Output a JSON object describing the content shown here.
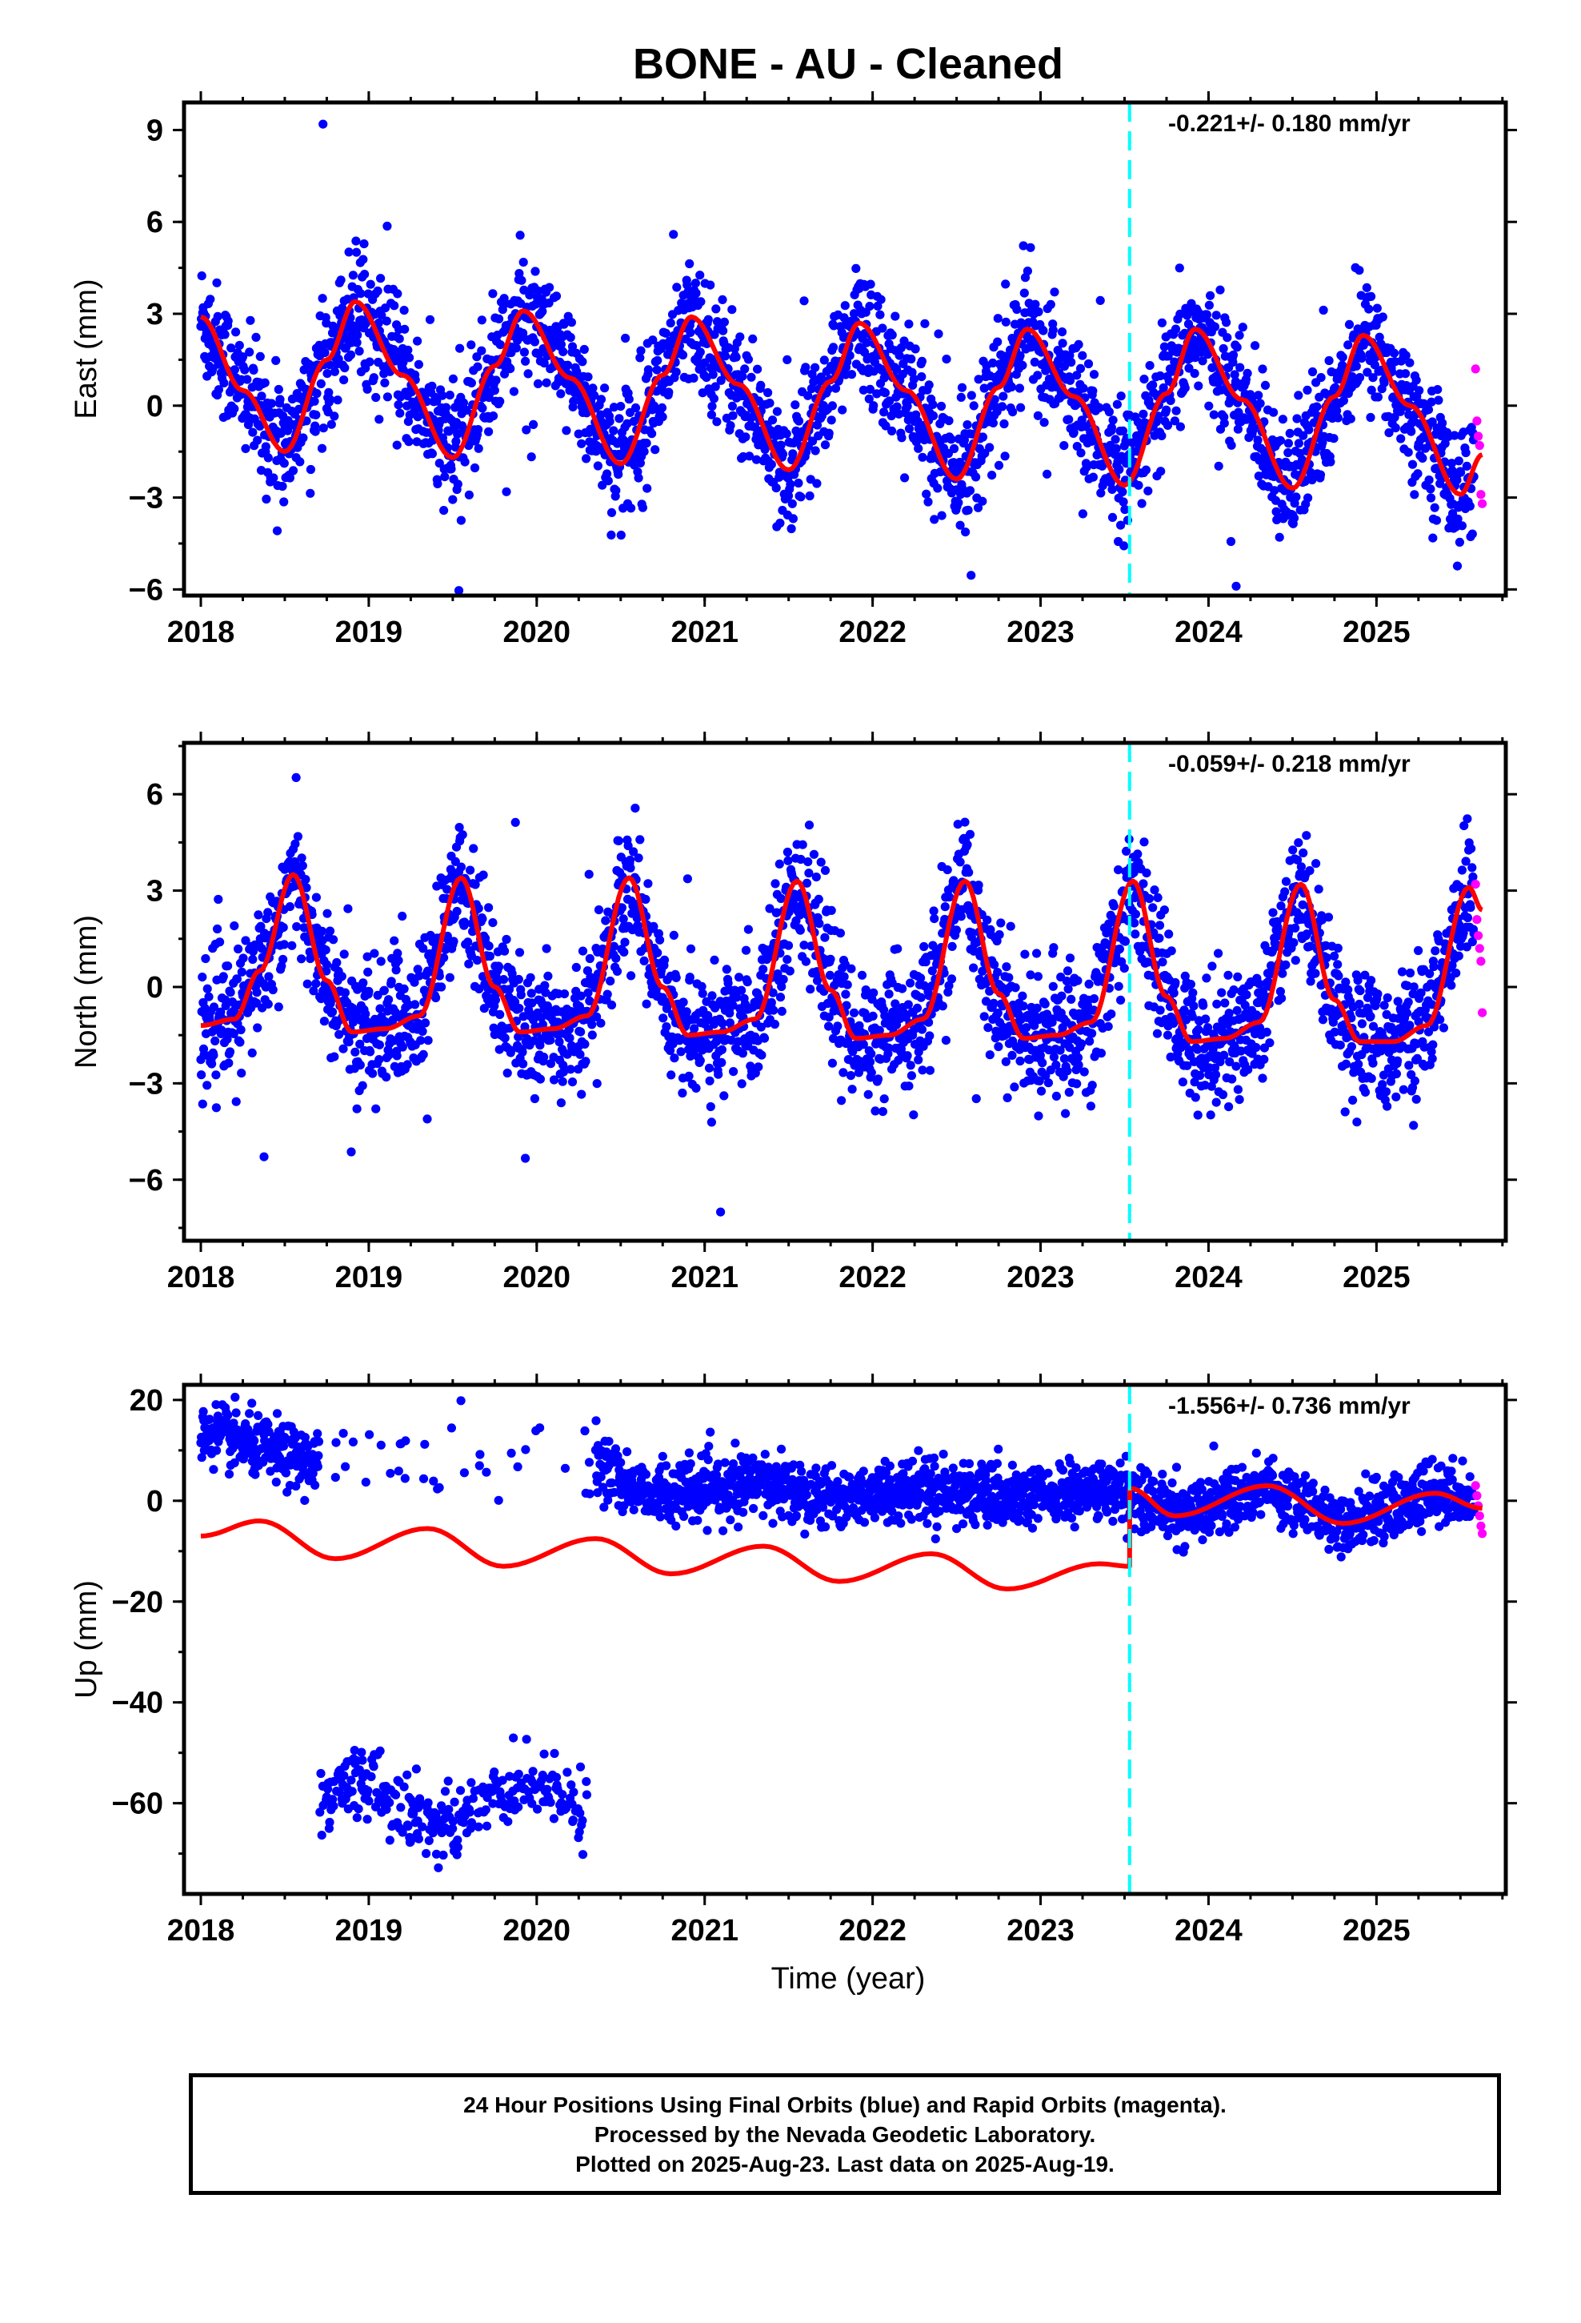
{
  "title": "BONE  - AU - Cleaned",
  "xlabel": "Time (year)",
  "footer": {
    "line1": "24 Hour Positions Using Final Orbits (blue) and Rapid Orbits (magenta).",
    "line2": "Processed by the Nevada Geodetic Laboratory.",
    "line3": "Plotted on 2025-Aug-23. Last data on 2025-Aug-19."
  },
  "colors": {
    "final_orbits": "#0000ff",
    "rapid_orbits": "#ff00ff",
    "model": "#ff0000",
    "equipment_change": "#00ffff"
  },
  "chart_data": [
    {
      "type": "scatter",
      "panel": "east",
      "ylabel": "East (mm)",
      "rate": "-0.221+/- 0.180 mm/yr",
      "xlim": [
        2017.9,
        2025.77
      ],
      "ylim": [
        -6.2,
        9.9
      ],
      "yticks": [
        -6,
        -3,
        0,
        3,
        6,
        9
      ],
      "xticks": [
        2018,
        2019,
        2020,
        2021,
        2022,
        2023,
        2024,
        2025
      ],
      "equipment_change": 2023.53,
      "series": [
        {
          "role": "final_orbits",
          "x_range": [
            2018.0,
            2025.58
          ],
          "approx_points": 2700,
          "scatter_sd_mm": 1.0
        },
        {
          "role": "rapid_orbits",
          "x_range": [
            2025.59,
            2025.63
          ],
          "y_values": [
            1.2,
            -0.5,
            -1.0,
            -1.3,
            -2.9,
            -3.2
          ]
        },
        {
          "role": "model",
          "x": [
            2018.0,
            2018.25,
            2018.5,
            2018.75,
            2018.92,
            2019.2,
            2019.5,
            2019.75,
            2019.92,
            2020.2,
            2020.5,
            2020.75,
            2020.92,
            2021.2,
            2021.5,
            2021.75,
            2021.92,
            2022.2,
            2022.5,
            2022.75,
            2022.92,
            2023.2,
            2023.5,
            2023.75,
            2023.92,
            2024.2,
            2024.5,
            2024.75,
            2024.92,
            2025.2,
            2025.5,
            2025.63
          ],
          "y": [
            2.9,
            0.5,
            -1.5,
            1.5,
            3.4,
            1.0,
            -1.7,
            1.3,
            3.1,
            0.9,
            -1.9,
            1.0,
            2.9,
            0.7,
            -2.1,
            0.8,
            2.7,
            0.5,
            -2.4,
            0.6,
            2.5,
            0.3,
            -2.6,
            0.4,
            2.5,
            0.2,
            -2.7,
            0.3,
            2.3,
            0.0,
            -2.9,
            -1.6
          ]
        }
      ]
    },
    {
      "type": "scatter",
      "panel": "north",
      "ylabel": "North (mm)",
      "rate": "-0.059+/- 0.218 mm/yr",
      "xlim": [
        2017.9,
        2025.77
      ],
      "ylim": [
        -7.9,
        7.6
      ],
      "yticks": [
        -6,
        -3,
        0,
        3,
        6
      ],
      "xticks": [
        2018,
        2019,
        2020,
        2021,
        2022,
        2023,
        2024,
        2025
      ],
      "equipment_change": 2023.53,
      "series": [
        {
          "role": "final_orbits",
          "x_range": [
            2018.0,
            2025.58
          ],
          "approx_points": 2700,
          "scatter_sd_mm": 1.0
        },
        {
          "role": "rapid_orbits",
          "x_range": [
            2025.59,
            2025.63
          ],
          "y_values": [
            3.2,
            2.1,
            1.6,
            1.2,
            0.8,
            -0.8
          ]
        },
        {
          "role": "model",
          "x": [
            2018.0,
            2018.2,
            2018.35,
            2018.55,
            2018.75,
            2018.9,
            2019.1,
            2019.3,
            2019.55,
            2019.75,
            2019.9,
            2020.1,
            2020.3,
            2020.55,
            2020.75,
            2020.9,
            2021.1,
            2021.3,
            2021.55,
            2021.75,
            2021.9,
            2022.1,
            2022.3,
            2022.55,
            2022.75,
            2022.9,
            2023.1,
            2023.3,
            2023.55,
            2023.75,
            2023.9,
            2024.1,
            2024.3,
            2024.55,
            2024.75,
            2024.9,
            2025.1,
            2025.3,
            2025.55,
            2025.63
          ],
          "y": [
            -1.2,
            -1.0,
            0.5,
            3.5,
            0.2,
            -1.4,
            -1.3,
            -0.9,
            3.4,
            0.0,
            -1.4,
            -1.3,
            -0.9,
            3.4,
            0.0,
            -1.5,
            -1.4,
            -1.0,
            3.3,
            -0.1,
            -1.6,
            -1.5,
            -1.0,
            3.3,
            -0.2,
            -1.6,
            -1.5,
            -1.1,
            3.3,
            -0.3,
            -1.7,
            -1.6,
            -1.1,
            3.2,
            -0.4,
            -1.7,
            -1.7,
            -1.2,
            3.1,
            2.4
          ]
        }
      ]
    },
    {
      "type": "scatter",
      "panel": "up",
      "ylabel": "Up (mm)",
      "rate": "-1.556+/- 0.736 mm/yr",
      "xlim": [
        2017.9,
        2025.77
      ],
      "ylim": [
        -78,
        23
      ],
      "yticks": [
        -60,
        -40,
        -20,
        0,
        20
      ],
      "xticks": [
        2018,
        2019,
        2020,
        2021,
        2022,
        2023,
        2024,
        2025
      ],
      "equipment_change": 2023.53,
      "series": [
        {
          "role": "final_orbits",
          "x_range": [
            2018.0,
            2025.58
          ],
          "approx_points": 2600,
          "note_cluster": {
            "x_range": [
              2018.7,
              2020.3
            ],
            "y_center": -60
          }
        },
        {
          "role": "rapid_orbits",
          "x_range": [
            2025.59,
            2025.63
          ],
          "y_values": [
            3,
            1,
            -1,
            -3,
            -5,
            -6.5
          ]
        },
        {
          "role": "model",
          "x": [
            2018.0,
            2018.35,
            2018.8,
            2019.35,
            2019.8,
            2020.35,
            2020.8,
            2021.35,
            2021.8,
            2022.35,
            2022.8,
            2023.35,
            2023.53,
            2023.531,
            2023.8,
            2024.35,
            2024.8,
            2025.35,
            2025.63
          ],
          "y": [
            -7,
            -4,
            -11.5,
            -5.5,
            -13,
            -7.5,
            -14.5,
            -9,
            -16,
            -10.5,
            -17.5,
            -12.5,
            -13,
            2.5,
            -3,
            3,
            -4.5,
            1.5,
            -1.5
          ]
        }
      ]
    }
  ]
}
